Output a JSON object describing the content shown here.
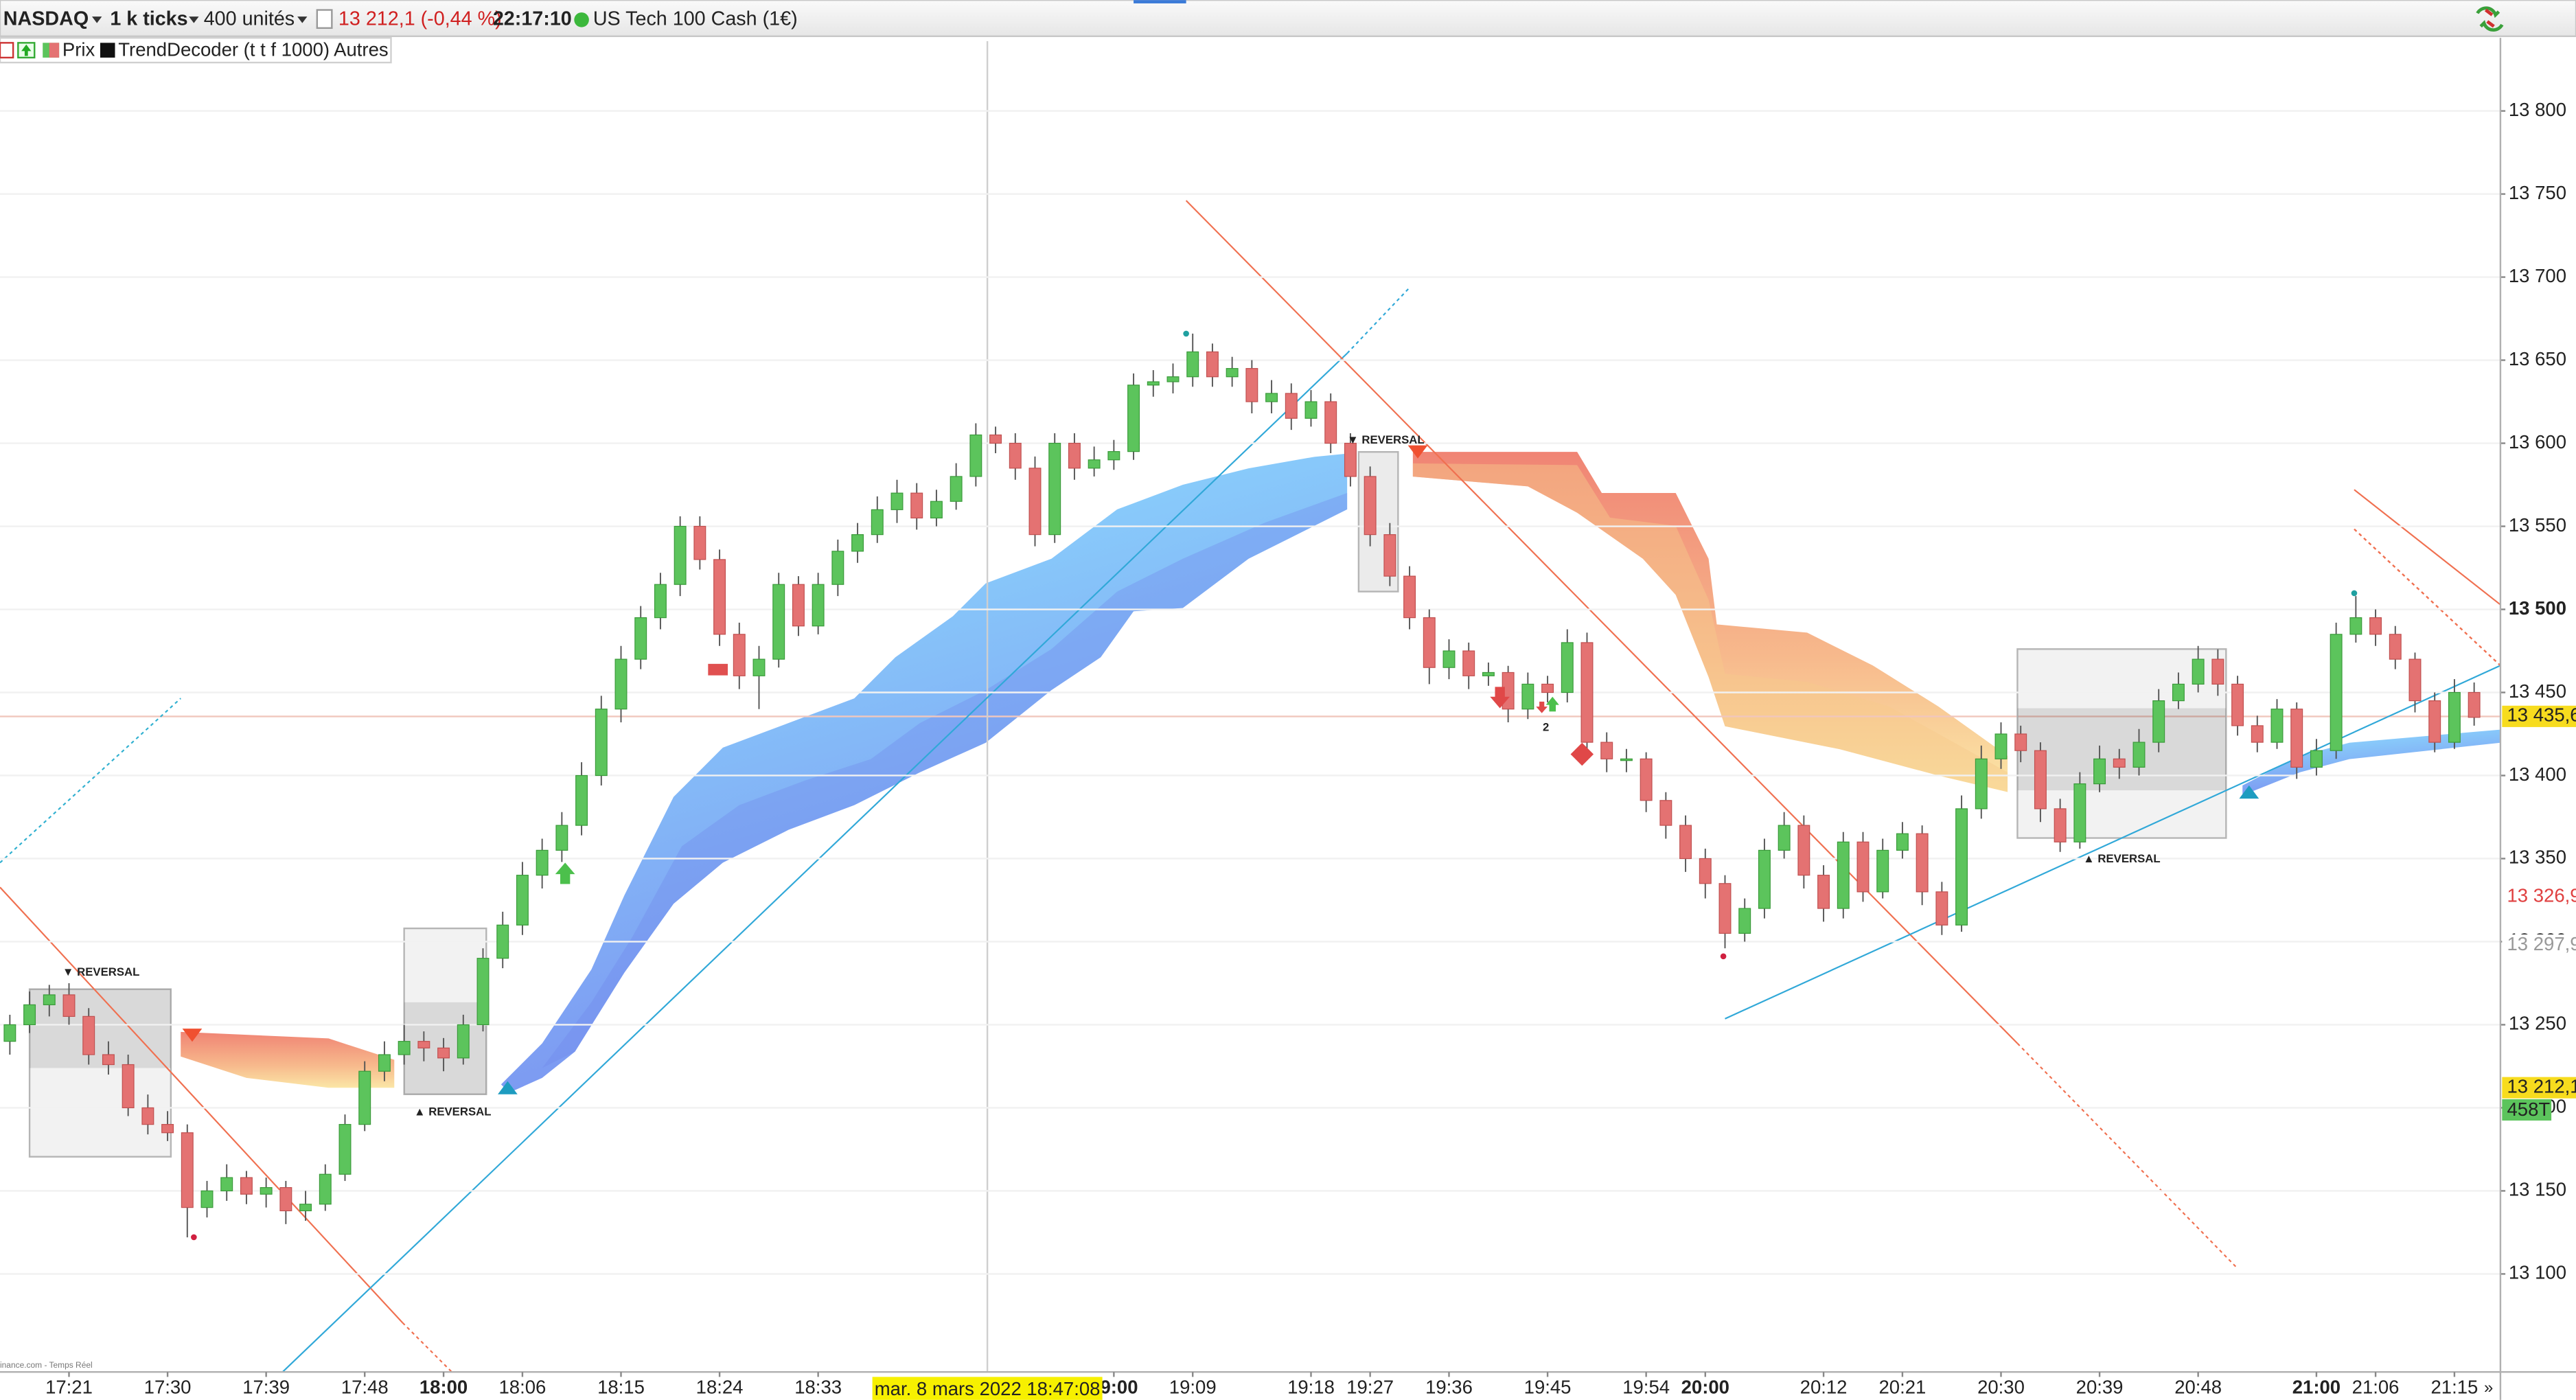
{
  "header": {
    "symbol": "NASDAQ",
    "timeframe": "1 k ticks",
    "units": "400 unités",
    "price_change": "13 212,1 (-0,44 %)",
    "time": "22:17:10",
    "instrument": "US Tech 100 Cash (1€)"
  },
  "legend": {
    "price": "Prix",
    "indicator": "TrendDecoder (t t f 1000) Autres"
  },
  "source": "inance.com - Temps Réel",
  "chart_data": {
    "type": "candlestick",
    "categories": [
      null,
      null,
      null,
      "17:21",
      null,
      null,
      null,
      null,
      "17:30",
      null,
      null,
      null,
      null,
      "17:39",
      null,
      null,
      null,
      null,
      "17:48",
      null,
      null,
      null,
      "18:00",
      null,
      null,
      null,
      "18:06",
      null,
      null,
      null,
      null,
      "18:15",
      null,
      null,
      null,
      null,
      "18:24",
      null,
      null,
      null,
      null,
      "18:33",
      null,
      null,
      null,
      null,
      null,
      null,
      null,
      null,
      null,
      null,
      null,
      null,
      null,
      null,
      "19:00",
      null,
      null,
      null,
      "19:09",
      null,
      null,
      null,
      null,
      null,
      "19:18",
      null,
      null,
      "19:27",
      null,
      null,
      null,
      "19:36",
      null,
      null,
      null,
      null,
      "19:45",
      null,
      null,
      null,
      null,
      "19:54",
      null,
      null,
      "20:00",
      null,
      null,
      null,
      null,
      null,
      "20:12",
      null,
      null,
      null,
      "20:21",
      null,
      null,
      null,
      null,
      "20:30",
      null,
      null,
      null,
      null,
      "20:39",
      null,
      null,
      null,
      null,
      "20:48",
      null,
      null,
      null,
      null,
      null,
      "21:00",
      null,
      null,
      "21:06",
      null,
      null,
      null,
      "21:15",
      null
    ],
    "ohlc": [
      [
        13240,
        13256,
        13232,
        13250
      ],
      [
        13250,
        13270,
        13245,
        13262
      ],
      [
        13262,
        13274,
        13255,
        13268
      ],
      [
        13268,
        13275,
        13250,
        13255
      ],
      [
        13255,
        13260,
        13226,
        13232
      ],
      [
        13232,
        13240,
        13220,
        13226
      ],
      [
        13226,
        13232,
        13195,
        13200
      ],
      [
        13200,
        13208,
        13184,
        13190
      ],
      [
        13190,
        13198,
        13180,
        13185
      ],
      [
        13185,
        13190,
        13122,
        13140
      ],
      [
        13140,
        13156,
        13134,
        13150
      ],
      [
        13150,
        13166,
        13144,
        13158
      ],
      [
        13158,
        13162,
        13142,
        13148
      ],
      [
        13148,
        13158,
        13140,
        13152
      ],
      [
        13152,
        13156,
        13130,
        13138
      ],
      [
        13138,
        13150,
        13132,
        13142
      ],
      [
        13142,
        13166,
        13138,
        13160
      ],
      [
        13160,
        13196,
        13156,
        13190
      ],
      [
        13190,
        13228,
        13186,
        13222
      ],
      [
        13222,
        13240,
        13216,
        13232
      ],
      [
        13232,
        13250,
        13226,
        13240
      ],
      [
        13240,
        13246,
        13228,
        13236
      ],
      [
        13236,
        13242,
        13222,
        13230
      ],
      [
        13230,
        13256,
        13226,
        13250
      ],
      [
        13250,
        13296,
        13246,
        13290
      ],
      [
        13290,
        13318,
        13284,
        13310
      ],
      [
        13310,
        13348,
        13304,
        13340
      ],
      [
        13340,
        13362,
        13332,
        13355
      ],
      [
        13355,
        13378,
        13348,
        13370
      ],
      [
        13370,
        13408,
        13364,
        13400
      ],
      [
        13400,
        13448,
        13394,
        13440
      ],
      [
        13440,
        13478,
        13432,
        13470
      ],
      [
        13470,
        13502,
        13464,
        13495
      ],
      [
        13495,
        13522,
        13488,
        13515
      ],
      [
        13515,
        13556,
        13508,
        13550
      ],
      [
        13550,
        13556,
        13524,
        13530
      ],
      [
        13530,
        13536,
        13478,
        13485
      ],
      [
        13485,
        13492,
        13452,
        13460
      ],
      [
        13460,
        13478,
        13440,
        13470
      ],
      [
        13470,
        13522,
        13465,
        13515
      ],
      [
        13515,
        13520,
        13484,
        13490
      ],
      [
        13490,
        13522,
        13485,
        13515
      ],
      [
        13515,
        13542,
        13508,
        13535
      ],
      [
        13535,
        13552,
        13528,
        13545
      ],
      [
        13545,
        13568,
        13540,
        13560
      ],
      [
        13560,
        13578,
        13552,
        13570
      ],
      [
        13570,
        13576,
        13548,
        13555
      ],
      [
        13555,
        13572,
        13550,
        13565
      ],
      [
        13565,
        13588,
        13560,
        13580
      ],
      [
        13580,
        13612,
        13574,
        13605
      ],
      [
        13605,
        13610,
        13594,
        13600
      ],
      [
        13600,
        13606,
        13578,
        13585
      ],
      [
        13585,
        13592,
        13538,
        13545
      ],
      [
        13545,
        13606,
        13540,
        13600
      ],
      [
        13600,
        13606,
        13578,
        13585
      ],
      [
        13585,
        13598,
        13580,
        13590
      ],
      [
        13590,
        13602,
        13584,
        13595
      ],
      [
        13595,
        13642,
        13590,
        13635
      ],
      [
        13635,
        13644,
        13628,
        13637
      ],
      [
        13637,
        13648,
        13630,
        13640
      ],
      [
        13640,
        13666,
        13634,
        13655
      ],
      [
        13655,
        13660,
        13634,
        13640
      ],
      [
        13640,
        13652,
        13634,
        13645
      ],
      [
        13645,
        13650,
        13618,
        13625
      ],
      [
        13625,
        13638,
        13618,
        13630
      ],
      [
        13630,
        13636,
        13608,
        13615
      ],
      [
        13615,
        13632,
        13610,
        13625
      ],
      [
        13625,
        13630,
        13594,
        13600
      ],
      [
        13600,
        13606,
        13574,
        13580
      ],
      [
        13580,
        13586,
        13538,
        13545
      ],
      [
        13545,
        13552,
        13514,
        13520
      ],
      [
        13520,
        13526,
        13488,
        13495
      ],
      [
        13495,
        13500,
        13455,
        13465
      ],
      [
        13465,
        13482,
        13458,
        13475
      ],
      [
        13475,
        13480,
        13452,
        13460
      ],
      [
        13460,
        13468,
        13454,
        13462
      ],
      [
        13462,
        13466,
        13432,
        13440
      ],
      [
        13440,
        13462,
        13434,
        13455
      ],
      [
        13455,
        13460,
        13444,
        13450
      ],
      [
        13450,
        13488,
        13444,
        13480
      ],
      [
        13480,
        13486,
        13412,
        13420
      ],
      [
        13420,
        13426,
        13402,
        13410
      ],
      [
        13410,
        13416,
        13402,
        13410
      ],
      [
        13410,
        13414,
        13378,
        13385
      ],
      [
        13385,
        13390,
        13362,
        13370
      ],
      [
        13370,
        13376,
        13342,
        13350
      ],
      [
        13350,
        13356,
        13326,
        13335
      ],
      [
        13335,
        13340,
        13296,
        13305
      ],
      [
        13305,
        13326,
        13300,
        13320
      ],
      [
        13320,
        13362,
        13314,
        13355
      ],
      [
        13355,
        13378,
        13350,
        13370
      ],
      [
        13370,
        13376,
        13332,
        13340
      ],
      [
        13340,
        13346,
        13312,
        13320
      ],
      [
        13320,
        13366,
        13314,
        13360
      ],
      [
        13360,
        13366,
        13324,
        13330
      ],
      [
        13330,
        13362,
        13326,
        13355
      ],
      [
        13355,
        13372,
        13350,
        13365
      ],
      [
        13365,
        13370,
        13322,
        13330
      ],
      [
        13330,
        13336,
        13304,
        13310
      ],
      [
        13310,
        13388,
        13306,
        13380
      ],
      [
        13380,
        13418,
        13374,
        13410
      ],
      [
        13410,
        13432,
        13404,
        13425
      ],
      [
        13425,
        13430,
        13408,
        13415
      ],
      [
        13415,
        13420,
        13372,
        13380
      ],
      [
        13380,
        13386,
        13354,
        13360
      ],
      [
        13360,
        13402,
        13356,
        13395
      ],
      [
        13395,
        13418,
        13390,
        13410
      ],
      [
        13410,
        13416,
        13398,
        13405
      ],
      [
        13405,
        13428,
        13400,
        13420
      ],
      [
        13420,
        13452,
        13414,
        13445
      ],
      [
        13445,
        13462,
        13440,
        13455
      ],
      [
        13455,
        13478,
        13450,
        13470
      ],
      [
        13470,
        13476,
        13448,
        13455
      ],
      [
        13455,
        13460,
        13424,
        13430
      ],
      [
        13430,
        13436,
        13414,
        13420
      ],
      [
        13420,
        13446,
        13416,
        13440
      ],
      [
        13440,
        13444,
        13398,
        13405
      ],
      [
        13405,
        13422,
        13400,
        13415
      ],
      [
        13415,
        13492,
        13410,
        13485
      ],
      [
        13485,
        13508,
        13480,
        13495
      ],
      [
        13495,
        13500,
        13478,
        13485
      ],
      [
        13485,
        13490,
        13464,
        13470
      ],
      [
        13470,
        13474,
        13438,
        13445
      ],
      [
        13445,
        13450,
        13414,
        13420
      ],
      [
        13420,
        13458,
        13416,
        13450
      ],
      [
        13450,
        13456,
        13430,
        13435
      ]
    ],
    "up_color": "#5cc45c",
    "down_color": "#e47272",
    "ylim": [
      13041,
      13842
    ],
    "yticks": [
      {
        "value": 13100,
        "label": "13 100"
      },
      {
        "value": 13150,
        "label": "13 150"
      },
      {
        "value": 13200,
        "label": "13 200"
      },
      {
        "value": 13250,
        "label": "13 250"
      },
      {
        "value": 13300,
        "label": "13 300"
      },
      {
        "value": 13350,
        "label": "13 350"
      },
      {
        "value": 13400,
        "label": "13 400"
      },
      {
        "value": 13450,
        "label": "13 450"
      },
      {
        "value": 13500,
        "label": "13 500"
      },
      {
        "value": 13550,
        "label": "13 550"
      },
      {
        "value": 13600,
        "label": "13 600"
      },
      {
        "value": 13650,
        "label": "13 650"
      },
      {
        "value": 13700,
        "label": "13 700"
      },
      {
        "value": 13750,
        "label": "13 750"
      },
      {
        "value": 13800,
        "label": "13 800"
      }
    ],
    "grid": true,
    "price_markers": [
      {
        "value": 13435.6,
        "label": "13 435,6",
        "color": "#f7dc1e",
        "text_color": "#222222"
      },
      {
        "value": 13326.9,
        "label": "13 326,9",
        "color": "#ffffff",
        "text_color": "#e04040"
      },
      {
        "value": 13297.9,
        "label": "13 297,9",
        "color": "#ffffff",
        "text_color": "#999999"
      },
      {
        "value": 13212.1,
        "label": "13 212,1",
        "color": "#f7dc1e",
        "text_color": "#222222"
      }
    ],
    "tick_count": "458T",
    "crosshair_label": "mar. 8 mars 2022 18:47:08",
    "annotations": [
      "▼ REVERSAL",
      "▲ REVERSAL",
      "▼ REVERSAL",
      "▲ REVERSAL",
      "2"
    ]
  }
}
